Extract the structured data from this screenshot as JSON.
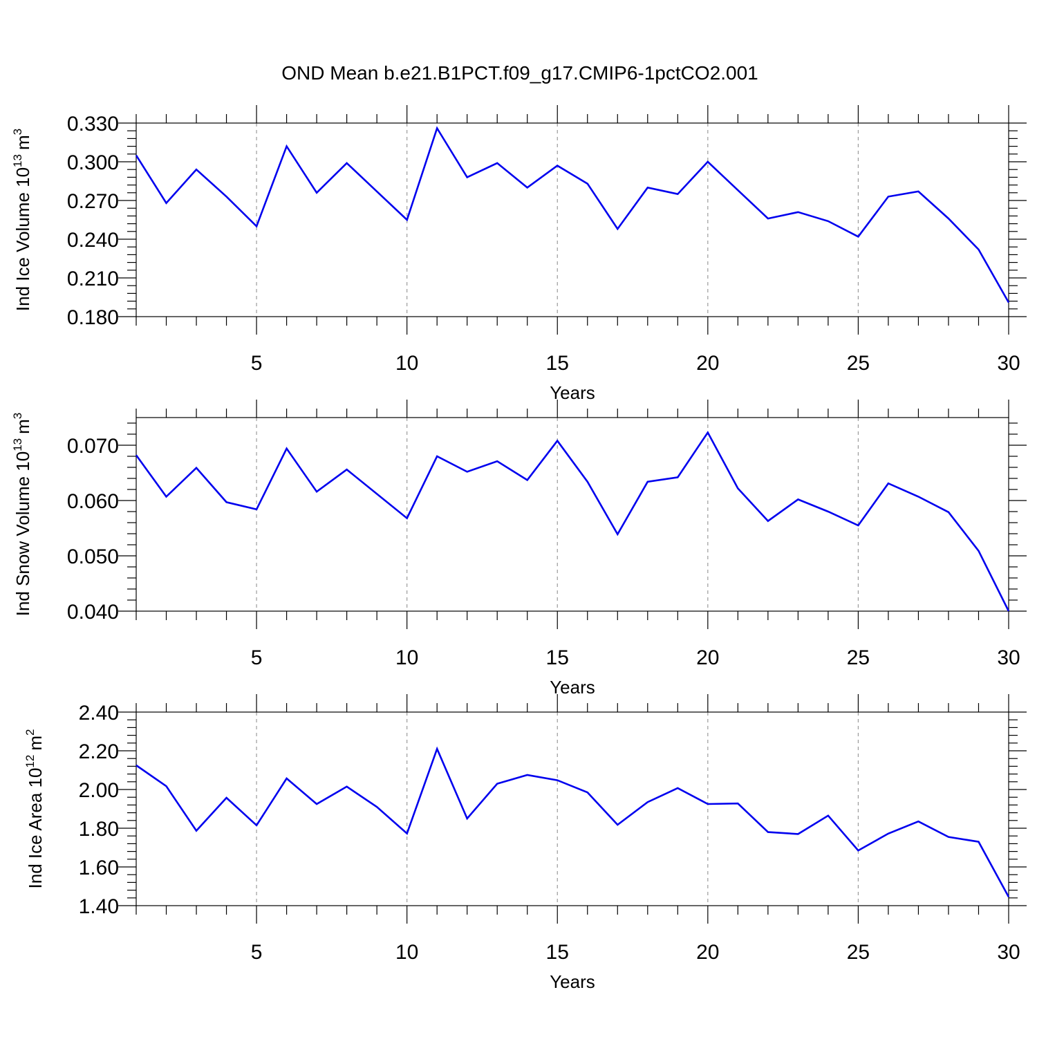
{
  "figure": {
    "title": "OND Mean b.e21.B1PCT.f09_g17.CMIP6-1pctCO2.001"
  },
  "chart_data": [
    {
      "type": "line",
      "id": "ice-volume",
      "title": "",
      "ylabel_main": "Ind Ice Volume 10",
      "ylabel_exp": "13",
      "ylabel_unit": "m",
      "ylabel_unit_exp": "3",
      "xlabel": "Years",
      "xlim": [
        1,
        30
      ],
      "ylim": [
        0.18,
        0.33
      ],
      "yticks": [
        0.18,
        0.21,
        0.24,
        0.27,
        0.3,
        0.33
      ],
      "ytick_labels": [
        "0.180",
        "0.210",
        "0.240",
        "0.270",
        "0.300",
        "0.330"
      ],
      "xticks": [
        5,
        10,
        15,
        20,
        25,
        30
      ],
      "xtick_labels": [
        "5",
        "10",
        "15",
        "20",
        "25",
        "30"
      ],
      "grid": "x-major dashed",
      "color": "#0000ee",
      "x": [
        1,
        2,
        3,
        4,
        5,
        6,
        7,
        8,
        9,
        10,
        11,
        12,
        13,
        14,
        15,
        16,
        17,
        18,
        19,
        20,
        21,
        22,
        23,
        24,
        25,
        26,
        27,
        28,
        29,
        30
      ],
      "series": [
        {
          "values": [
            0.305,
            0.268,
            0.294,
            0.273,
            0.25,
            0.312,
            0.276,
            0.299,
            0.277,
            0.255,
            0.326,
            0.288,
            0.299,
            0.28,
            0.297,
            0.283,
            0.248,
            0.28,
            0.275,
            0.3,
            0.278,
            0.256,
            0.261,
            0.254,
            0.242,
            0.273,
            0.277,
            0.256,
            0.232,
            0.191
          ]
        }
      ]
    },
    {
      "type": "line",
      "id": "snow-volume",
      "title": "",
      "ylabel_main": "Ind Snow Volume 10",
      "ylabel_exp": "13",
      "ylabel_unit": "m",
      "ylabel_unit_exp": "3",
      "xlabel": "Years",
      "xlim": [
        1,
        30
      ],
      "ylim": [
        0.04,
        0.075
      ],
      "yticks": [
        0.04,
        0.05,
        0.06,
        0.07
      ],
      "ytick_labels": [
        "0.040",
        "0.050",
        "0.060",
        "0.070"
      ],
      "xticks": [
        5,
        10,
        15,
        20,
        25,
        30
      ],
      "xtick_labels": [
        "5",
        "10",
        "15",
        "20",
        "25",
        "30"
      ],
      "grid": "x-major dashed",
      "color": "#0000ee",
      "x": [
        1,
        2,
        3,
        4,
        5,
        6,
        7,
        8,
        9,
        10,
        11,
        12,
        13,
        14,
        15,
        16,
        17,
        18,
        19,
        20,
        21,
        22,
        23,
        24,
        25,
        26,
        27,
        28,
        29,
        30
      ],
      "series": [
        {
          "values": [
            0.0682,
            0.0607,
            0.0659,
            0.0597,
            0.0584,
            0.0694,
            0.0616,
            0.0656,
            0.0612,
            0.0568,
            0.068,
            0.0652,
            0.0671,
            0.0637,
            0.0708,
            0.0634,
            0.0539,
            0.0634,
            0.0642,
            0.0723,
            0.0622,
            0.0563,
            0.0602,
            0.058,
            0.0555,
            0.0631,
            0.0607,
            0.0579,
            0.0509,
            0.04
          ]
        }
      ]
    },
    {
      "type": "line",
      "id": "ice-area",
      "title": "",
      "ylabel_main": "Ind Ice Area 10",
      "ylabel_exp": "12",
      "ylabel_unit": "m",
      "ylabel_unit_exp": "2",
      "xlabel": "Years",
      "xlim": [
        1,
        30
      ],
      "ylim": [
        1.4,
        2.4
      ],
      "yticks": [
        1.4,
        1.6,
        1.8,
        2.0,
        2.2,
        2.4
      ],
      "ytick_labels": [
        "1.40",
        "1.60",
        "1.80",
        "2.00",
        "2.20",
        "2.40"
      ],
      "xticks": [
        5,
        10,
        15,
        20,
        25,
        30
      ],
      "xtick_labels": [
        "5",
        "10",
        "15",
        "20",
        "25",
        "30"
      ],
      "grid": "x-major dashed",
      "color": "#0000ee",
      "x": [
        1,
        2,
        3,
        4,
        5,
        6,
        7,
        8,
        9,
        10,
        11,
        12,
        13,
        14,
        15,
        16,
        17,
        18,
        19,
        20,
        21,
        22,
        23,
        24,
        25,
        26,
        27,
        28,
        29,
        30
      ],
      "series": [
        {
          "values": [
            2.125,
            2.017,
            1.787,
            1.957,
            1.815,
            2.057,
            1.925,
            2.015,
            1.91,
            1.773,
            2.21,
            1.85,
            2.03,
            2.075,
            2.048,
            1.985,
            1.818,
            1.935,
            2.007,
            1.925,
            1.928,
            1.78,
            1.77,
            1.865,
            1.685,
            1.772,
            1.835,
            1.755,
            1.73,
            1.445
          ]
        }
      ]
    }
  ]
}
